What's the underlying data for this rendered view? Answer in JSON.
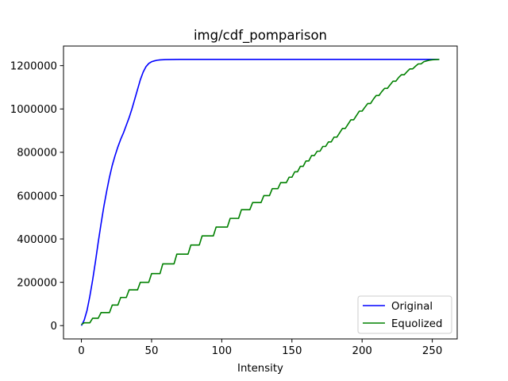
{
  "chart_data": {
    "type": "line",
    "title": "img/cdf_pomparison",
    "xlabel": "Intensity",
    "ylabel": "",
    "xlim": [
      -12.75,
      267.75
    ],
    "ylim": [
      -61450,
      1290450
    ],
    "xticks": [
      0,
      50,
      100,
      150,
      200,
      250
    ],
    "yticks": [
      0,
      200000,
      400000,
      600000,
      800000,
      1000000,
      1200000
    ],
    "grid": false,
    "legend_position": "lower right",
    "series": [
      {
        "name": "Original",
        "color": "#0000ff",
        "x": [
          0,
          2,
          4,
          6,
          8,
          10,
          12,
          14,
          16,
          18,
          20,
          22,
          24,
          26,
          28,
          30,
          32,
          34,
          36,
          38,
          40,
          42,
          44,
          46,
          48,
          50,
          52,
          54,
          56,
          60,
          65,
          70,
          80,
          100,
          150,
          200,
          255
        ],
        "y": [
          0,
          25000,
          70000,
          135000,
          210000,
          295000,
          385000,
          470000,
          550000,
          620000,
          685000,
          740000,
          785000,
          825000,
          860000,
          890000,
          925000,
          960000,
          1000000,
          1045000,
          1090000,
          1135000,
          1170000,
          1195000,
          1210000,
          1218000,
          1222000,
          1225000,
          1226500,
          1228000,
          1228500,
          1229000,
          1229000,
          1229000,
          1229000,
          1229000,
          1229000
        ]
      },
      {
        "name": "Equolized",
        "color": "#008000",
        "x": [
          0,
          2,
          4,
          6,
          8,
          10,
          12,
          14,
          16,
          18,
          20,
          22,
          24,
          26,
          28,
          30,
          32,
          34,
          36,
          38,
          40,
          42,
          44,
          46,
          48,
          50,
          52,
          54,
          56,
          58,
          60,
          62,
          64,
          66,
          68,
          70,
          72,
          74,
          76,
          78,
          80,
          82,
          84,
          86,
          88,
          90,
          92,
          94,
          96,
          98,
          100,
          102,
          104,
          106,
          108,
          110,
          112,
          114,
          116,
          118,
          120,
          122,
          124,
          126,
          128,
          130,
          132,
          134,
          136,
          138,
          140,
          142,
          144,
          146,
          148,
          150,
          152,
          154,
          156,
          158,
          160,
          162,
          164,
          166,
          168,
          170,
          172,
          174,
          176,
          178,
          180,
          182,
          184,
          186,
          188,
          190,
          192,
          194,
          196,
          198,
          200,
          202,
          204,
          206,
          208,
          210,
          212,
          214,
          216,
          218,
          220,
          222,
          224,
          226,
          228,
          230,
          232,
          234,
          236,
          238,
          240,
          242,
          244,
          246,
          248,
          250,
          252,
          255
        ],
        "y": [
          5000,
          13000,
          13000,
          13000,
          34000,
          34000,
          34000,
          60000,
          60000,
          60000,
          60000,
          95000,
          95000,
          95000,
          130000,
          130000,
          130000,
          165000,
          165000,
          165000,
          165000,
          200000,
          200000,
          200000,
          200000,
          240000,
          240000,
          240000,
          240000,
          285000,
          285000,
          285000,
          285000,
          285000,
          330000,
          330000,
          330000,
          330000,
          330000,
          372000,
          372000,
          372000,
          372000,
          414000,
          414000,
          414000,
          414000,
          414000,
          455000,
          455000,
          455000,
          455000,
          455000,
          495000,
          495000,
          495000,
          495000,
          535000,
          535000,
          535000,
          535000,
          568000,
          568000,
          568000,
          568000,
          600000,
          600000,
          600000,
          632000,
          632000,
          632000,
          660000,
          660000,
          660000,
          685000,
          685000,
          710000,
          710000,
          735000,
          735000,
          760000,
          760000,
          785000,
          785000,
          805000,
          805000,
          827000,
          827000,
          848000,
          848000,
          870000,
          870000,
          890000,
          910000,
          910000,
          930000,
          950000,
          950000,
          970000,
          990000,
          990000,
          1008000,
          1025000,
          1025000,
          1045000,
          1062000,
          1062000,
          1080000,
          1095000,
          1095000,
          1112000,
          1128000,
          1128000,
          1145000,
          1158000,
          1158000,
          1172000,
          1185000,
          1185000,
          1197000,
          1208000,
          1208000,
          1218000,
          1222000,
          1225000,
          1227000,
          1228000,
          1229000
        ]
      }
    ]
  }
}
